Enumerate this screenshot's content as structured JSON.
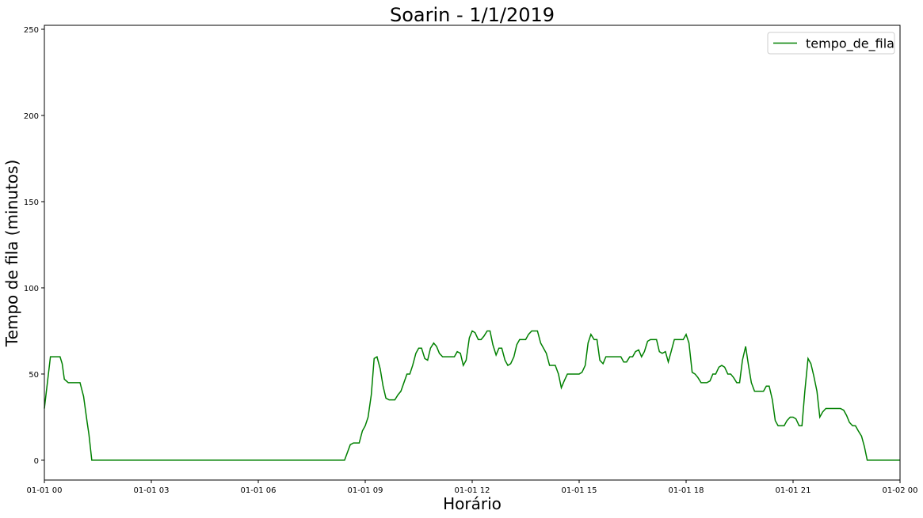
{
  "chart_data": {
    "type": "line",
    "title": "Soarin - 1/1/2019",
    "xlabel": "Horário",
    "ylabel": "Tempo de fila (minutos)",
    "x": [
      0,
      0.17,
      0.33,
      0.44,
      0.5,
      0.56,
      0.67,
      0.83,
      1.0,
      1.1,
      1.2,
      1.25,
      1.33,
      8.42,
      8.58,
      8.67,
      8.83,
      8.92,
      9.0,
      9.08,
      9.17,
      9.25,
      9.33,
      9.42,
      9.5,
      9.58,
      9.67,
      9.83,
      9.92,
      10.0,
      10.17,
      10.25,
      10.33,
      10.42,
      10.5,
      10.58,
      10.67,
      10.75,
      10.83,
      10.92,
      11.0,
      11.08,
      11.17,
      11.33,
      11.5,
      11.58,
      11.67,
      11.75,
      11.83,
      11.92,
      12.0,
      12.08,
      12.17,
      12.25,
      12.33,
      12.42,
      12.5,
      12.58,
      12.67,
      12.75,
      12.83,
      12.92,
      13.0,
      13.08,
      13.17,
      13.25,
      13.33,
      13.5,
      13.58,
      13.67,
      13.83,
      13.92,
      14.0,
      14.08,
      14.17,
      14.33,
      14.42,
      14.5,
      14.58,
      14.67,
      14.83,
      15.0,
      15.08,
      15.17,
      15.25,
      15.33,
      15.42,
      15.5,
      15.58,
      15.67,
      15.75,
      16.0,
      16.17,
      16.25,
      16.33,
      16.42,
      16.5,
      16.58,
      16.67,
      16.75,
      16.83,
      16.92,
      17.0,
      17.17,
      17.25,
      17.33,
      17.42,
      17.5,
      17.58,
      17.67,
      17.83,
      17.92,
      18.0,
      18.08,
      18.17,
      18.25,
      18.33,
      18.42,
      18.58,
      18.67,
      18.75,
      18.83,
      18.92,
      19.0,
      19.08,
      19.17,
      19.25,
      19.33,
      19.42,
      19.5,
      19.58,
      19.67,
      19.75,
      19.83,
      19.92,
      20.0,
      20.17,
      20.25,
      20.33,
      20.42,
      20.5,
      20.58,
      20.75,
      20.83,
      20.92,
      21.0,
      21.08,
      21.17,
      21.25,
      21.33,
      21.42,
      21.5,
      21.58,
      21.67,
      21.75,
      21.83,
      21.92,
      22.0,
      22.17,
      22.33,
      22.42,
      22.5,
      22.58,
      22.67,
      22.75,
      22.83,
      22.92,
      23.0,
      23.08,
      23.33,
      24
    ],
    "series": [
      {
        "name": "tempo_de_fila",
        "color": "#008000",
        "values": [
          30,
          60,
          60,
          60,
          56,
          47,
          45,
          45,
          45,
          37,
          22,
          15,
          0,
          0,
          9,
          10,
          10,
          17,
          20,
          25,
          38,
          59,
          60,
          53,
          43,
          36,
          35,
          35,
          38,
          40,
          50,
          50,
          55,
          62,
          65,
          65,
          59,
          58,
          65,
          68,
          66,
          62,
          60,
          60,
          60,
          63,
          62,
          55,
          58,
          71,
          75,
          74,
          70,
          70,
          72,
          75,
          75,
          67,
          61,
          65,
          65,
          58,
          55,
          56,
          60,
          67,
          70,
          70,
          73,
          75,
          75,
          68,
          65,
          62,
          55,
          55,
          50,
          42,
          46,
          50,
          50,
          50,
          51,
          55,
          68,
          73,
          70,
          70,
          58,
          56,
          60,
          60,
          60,
          57,
          57,
          60,
          60,
          63,
          64,
          60,
          63,
          69,
          70,
          70,
          63,
          62,
          63,
          57,
          63,
          70,
          70,
          70,
          73,
          68,
          51,
          50,
          48,
          45,
          45,
          46,
          50,
          50,
          54,
          55,
          54,
          50,
          50,
          48,
          45,
          45,
          58,
          66,
          55,
          45,
          40,
          40,
          40,
          43,
          43,
          35,
          23,
          20,
          20,
          23,
          25,
          25,
          24,
          20,
          20,
          40,
          59,
          56,
          49,
          40,
          25,
          28,
          30,
          30,
          30,
          30,
          29,
          26,
          22,
          20,
          20,
          17,
          14,
          8,
          0,
          0,
          0
        ]
      }
    ],
    "xlim": [
      0,
      24
    ],
    "xticks": [
      {
        "value": 0,
        "label": "01-01 00"
      },
      {
        "value": 3,
        "label": "01-01 03"
      },
      {
        "value": 6,
        "label": "01-01 06"
      },
      {
        "value": 9,
        "label": "01-01 09"
      },
      {
        "value": 12,
        "label": "01-01 12"
      },
      {
        "value": 15,
        "label": "01-01 15"
      },
      {
        "value": 18,
        "label": "01-01 18"
      },
      {
        "value": 21,
        "label": "01-01 21"
      },
      {
        "value": 24,
        "label": "01-02 00"
      }
    ],
    "ylim": [
      -11.5,
      252.3
    ],
    "yticks": [
      0,
      50,
      100,
      150,
      200,
      250
    ],
    "legend": "upper right"
  }
}
